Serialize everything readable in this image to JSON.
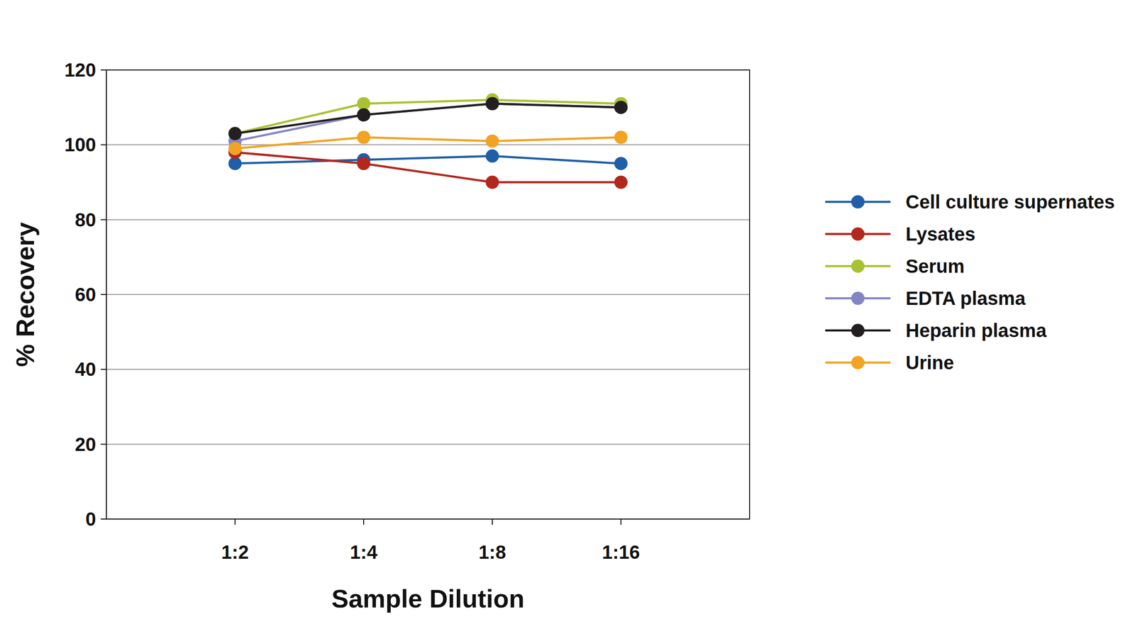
{
  "chart_data": {
    "type": "line",
    "x_label": "Sample Dilution",
    "y_label": "% Recovery",
    "categories": [
      "1:2",
      "1:4",
      "1:8",
      "1:16"
    ],
    "series": [
      {
        "name": "Cell culture supernates",
        "color": "#1f5ea8",
        "values": [
          95,
          96,
          97,
          95
        ]
      },
      {
        "name": "Lysates",
        "color": "#b3271d",
        "values": [
          98,
          95,
          90,
          90
        ]
      },
      {
        "name": "Serum",
        "color": "#a9c233",
        "values": [
          103,
          111,
          112,
          111
        ]
      },
      {
        "name": "EDTA plasma",
        "color": "#8485c4",
        "values": [
          101,
          108,
          111,
          110
        ]
      },
      {
        "name": "Heparin plasma",
        "color": "#231f20",
        "values": [
          103,
          108,
          111,
          110
        ]
      },
      {
        "name": "Urine",
        "color": "#f2a324",
        "values": [
          99,
          102,
          101,
          102
        ]
      }
    ],
    "ylim": [
      0,
      120
    ],
    "yticks": [
      0,
      20,
      40,
      60,
      80,
      100,
      120
    ],
    "grid": true,
    "marker": "circle",
    "legend": "right"
  }
}
